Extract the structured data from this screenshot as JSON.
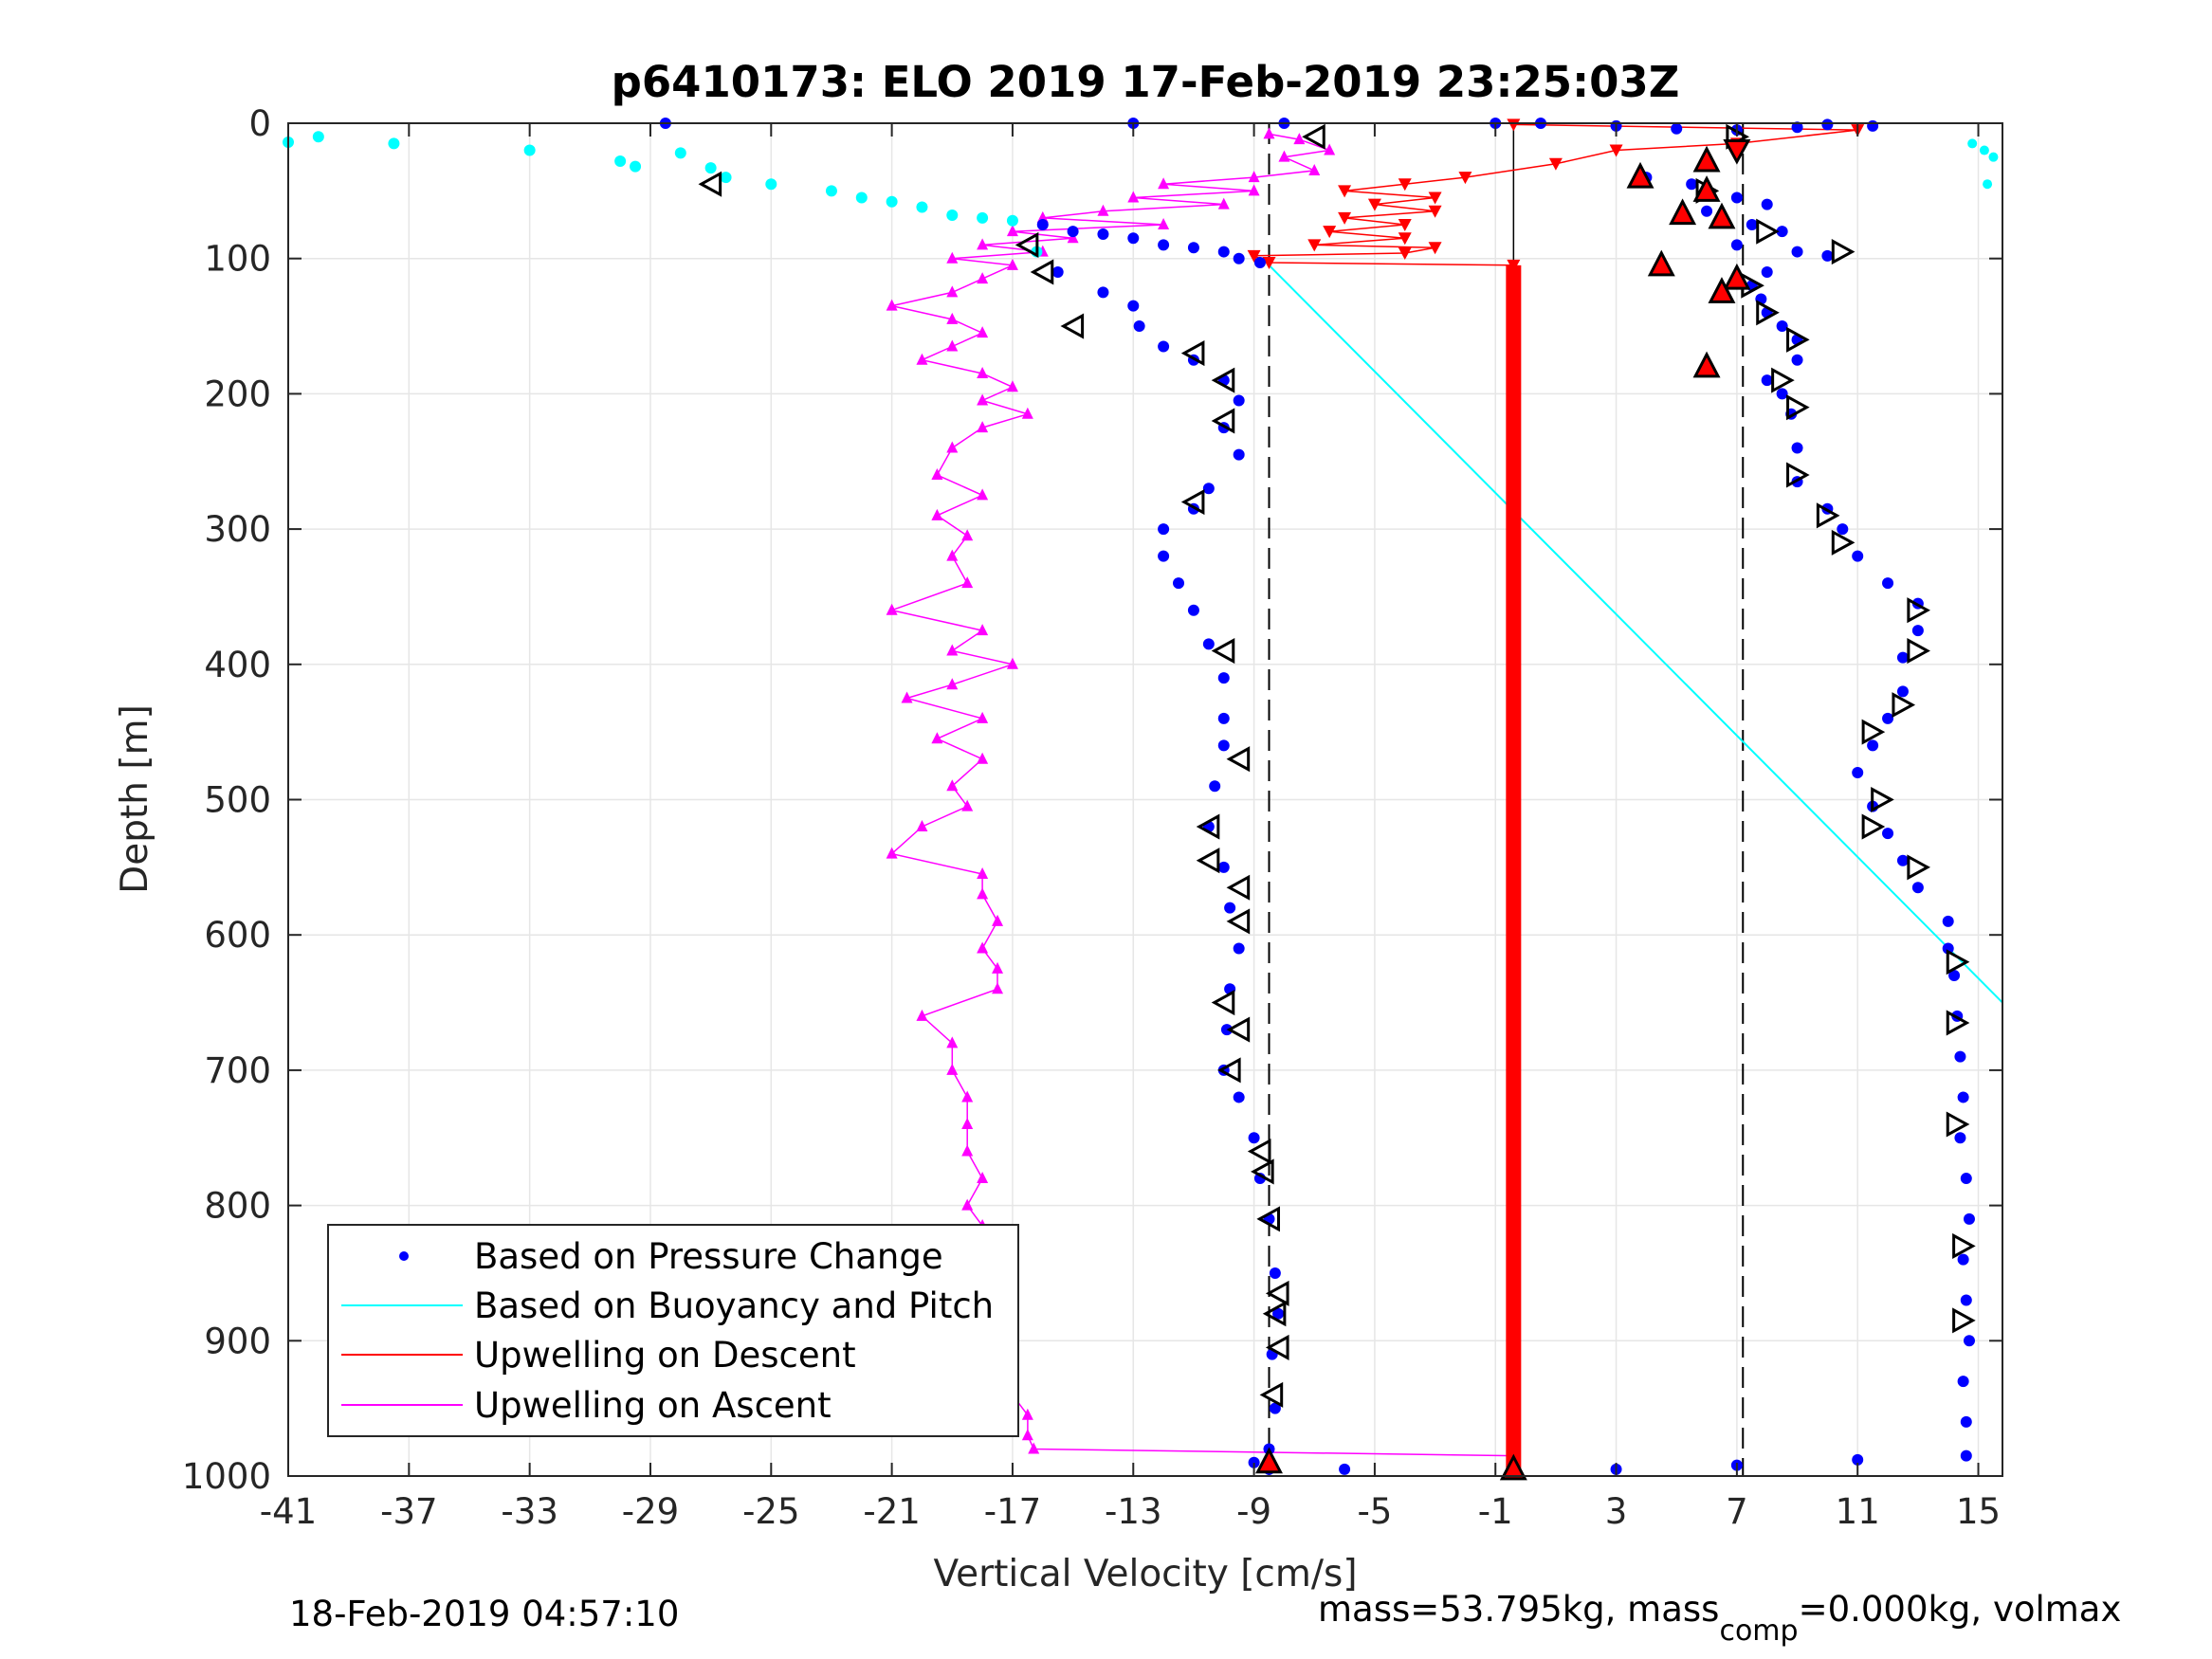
{
  "chart_data": {
    "type": "scatter",
    "title": "p6410173: ELO 2019 17-Feb-2019 23:25:03Z",
    "xlabel": "Vertical Velocity [cm/s]",
    "ylabel": "Depth [m]",
    "xlim": [
      -41,
      15.8
    ],
    "ylim": [
      0,
      1000
    ],
    "y_reversed": true,
    "grid": true,
    "xticks": [
      "-41",
      "-37",
      "-33",
      "-29",
      "-25",
      "-21",
      "-17",
      "-13",
      "-9",
      "-5",
      "-1",
      "3",
      "7",
      "11",
      "15"
    ],
    "yticks": [
      "0",
      "100",
      "200",
      "300",
      "400",
      "500",
      "600",
      "700",
      "800",
      "900",
      "1000"
    ],
    "legend_position": "bottom-left",
    "legend": [
      {
        "label": "Based on Pressure Change",
        "color": "#0000ff",
        "marker": "dot"
      },
      {
        "label": "Based on Buoyancy and Pitch",
        "color": "#00ffff",
        "marker": "line"
      },
      {
        "label": "Upwelling on Descent",
        "color": "#ff0000",
        "marker": "line"
      },
      {
        "label": "Upwelling on Ascent",
        "color": "#ff00ff",
        "marker": "line"
      }
    ],
    "reference_lines_x": [
      -8.5,
      7.2
    ],
    "buoyancy_pitch_line": {
      "from": [
        -8.5,
        105
      ],
      "to": [
        15.8,
        650
      ]
    },
    "descent_pressure": [
      [
        -41,
        14
      ],
      [
        -40,
        10
      ],
      [
        -37.5,
        15
      ],
      [
        -33,
        20
      ],
      [
        -30,
        28
      ],
      [
        -29.5,
        32
      ],
      [
        -28,
        22
      ],
      [
        -27,
        33
      ],
      [
        -26.5,
        40
      ],
      [
        -25,
        45
      ],
      [
        -23,
        50
      ],
      [
        -22,
        55
      ],
      [
        -21,
        58
      ],
      [
        -20,
        62
      ],
      [
        -19,
        68
      ],
      [
        -18,
        70
      ],
      [
        -17,
        72
      ],
      [
        -16,
        75
      ],
      [
        -15,
        80
      ],
      [
        -14,
        82
      ],
      [
        -13,
        85
      ],
      [
        -12,
        90
      ],
      [
        -11,
        92
      ],
      [
        -10,
        95
      ],
      [
        -9.5,
        100
      ],
      [
        -8.8,
        103
      ],
      [
        -16.2,
        95
      ],
      [
        -15.5,
        110
      ],
      [
        -14,
        125
      ],
      [
        -13,
        135
      ],
      [
        -12.8,
        150
      ],
      [
        -12,
        165
      ],
      [
        -11,
        175
      ],
      [
        -10,
        190
      ],
      [
        -9.5,
        205
      ],
      [
        -10,
        225
      ],
      [
        -9.5,
        245
      ],
      [
        -10.5,
        270
      ],
      [
        -11,
        285
      ],
      [
        -12,
        300
      ],
      [
        -12,
        320
      ],
      [
        -11.5,
        340
      ],
      [
        -11,
        360
      ],
      [
        -10.5,
        385
      ],
      [
        -10,
        410
      ],
      [
        -10,
        440
      ],
      [
        -10,
        460
      ],
      [
        -10.3,
        490
      ],
      [
        -10.5,
        520
      ],
      [
        -10,
        550
      ],
      [
        -9.8,
        580
      ],
      [
        -9.5,
        610
      ],
      [
        -9.8,
        640
      ],
      [
        -9.9,
        670
      ],
      [
        -10,
        700
      ],
      [
        -9.5,
        720
      ],
      [
        -9,
        750
      ],
      [
        -8.8,
        780
      ],
      [
        -8.5,
        810
      ],
      [
        -8.3,
        850
      ],
      [
        -8.2,
        880
      ],
      [
        -8.4,
        910
      ],
      [
        -8.3,
        950
      ],
      [
        -8.5,
        980
      ],
      [
        -8.5,
        995
      ]
    ],
    "ascent_pressure": [
      [
        -28.5,
        0
      ],
      [
        -13,
        0
      ],
      [
        -8,
        0
      ],
      [
        -1,
        0
      ],
      [
        0.5,
        0
      ],
      [
        3,
        2
      ],
      [
        5,
        4
      ],
      [
        7,
        5
      ],
      [
        9,
        3
      ],
      [
        10,
        1
      ],
      [
        11.5,
        2
      ],
      [
        4,
        40
      ],
      [
        5.5,
        45
      ],
      [
        6,
        50
      ],
      [
        7,
        55
      ],
      [
        8,
        60
      ],
      [
        6,
        65
      ],
      [
        7.5,
        75
      ],
      [
        8.5,
        80
      ],
      [
        7,
        90
      ],
      [
        9,
        95
      ],
      [
        10,
        98
      ],
      [
        8,
        110
      ],
      [
        7.5,
        120
      ],
      [
        7.8,
        130
      ],
      [
        8,
        140
      ],
      [
        8.5,
        150
      ],
      [
        9,
        160
      ],
      [
        9,
        175
      ],
      [
        8,
        190
      ],
      [
        8.5,
        200
      ],
      [
        8.8,
        215
      ],
      [
        9,
        240
      ],
      [
        9,
        265
      ],
      [
        10,
        285
      ],
      [
        10.5,
        300
      ],
      [
        11,
        320
      ],
      [
        12,
        340
      ],
      [
        13,
        355
      ],
      [
        13,
        375
      ],
      [
        12.5,
        395
      ],
      [
        12.5,
        420
      ],
      [
        12,
        440
      ],
      [
        11.5,
        460
      ],
      [
        11,
        480
      ],
      [
        11.5,
        505
      ],
      [
        12,
        525
      ],
      [
        12.5,
        545
      ],
      [
        13,
        565
      ],
      [
        14,
        590
      ],
      [
        14,
        610
      ],
      [
        14.2,
        630
      ],
      [
        14.3,
        660
      ],
      [
        14.4,
        690
      ],
      [
        14.5,
        720
      ],
      [
        14.4,
        750
      ],
      [
        14.6,
        780
      ],
      [
        14.7,
        810
      ],
      [
        14.5,
        840
      ],
      [
        14.6,
        870
      ],
      [
        14.7,
        900
      ],
      [
        14.5,
        930
      ],
      [
        14.6,
        960
      ],
      [
        14.6,
        985
      ],
      [
        -9,
        990
      ],
      [
        -6,
        995
      ],
      [
        3,
        995
      ],
      [
        7,
        992
      ],
      [
        11,
        988
      ]
    ],
    "buoyancy_markers": [
      {
        "depth": 15,
        "v": 14.8
      },
      {
        "depth": 20,
        "v": 15.2
      },
      {
        "depth": 25,
        "v": 15.5
      },
      {
        "depth": 45,
        "v": 15.3
      }
    ],
    "upwelling_descent": [
      [
        -0.4,
        1
      ],
      [
        11,
        5
      ],
      [
        7,
        15
      ],
      [
        3,
        20
      ],
      [
        1,
        30
      ],
      [
        -2,
        40
      ],
      [
        -4,
        45
      ],
      [
        -6,
        50
      ],
      [
        -3,
        55
      ],
      [
        -5,
        60
      ],
      [
        -3,
        65
      ],
      [
        -6,
        70
      ],
      [
        -4,
        75
      ],
      [
        -6.5,
        80
      ],
      [
        -4,
        85
      ],
      [
        -7,
        90
      ],
      [
        -3,
        92
      ],
      [
        -4,
        96
      ],
      [
        -9,
        98
      ],
      [
        -8.5,
        103
      ],
      [
        -0.4,
        105
      ]
    ],
    "upwelling_ascent": [
      [
        -8.5,
        8
      ],
      [
        -7.5,
        12
      ],
      [
        -6.5,
        20
      ],
      [
        -8,
        25
      ],
      [
        -7,
        35
      ],
      [
        -9,
        40
      ],
      [
        -12,
        45
      ],
      [
        -9,
        50
      ],
      [
        -13,
        55
      ],
      [
        -10,
        60
      ],
      [
        -14,
        65
      ],
      [
        -16,
        70
      ],
      [
        -12,
        75
      ],
      [
        -17,
        80
      ],
      [
        -15,
        85
      ],
      [
        -18,
        90
      ],
      [
        -16,
        95
      ],
      [
        -19,
        100
      ],
      [
        -17,
        105
      ],
      [
        -18,
        115
      ],
      [
        -19,
        125
      ],
      [
        -21,
        135
      ],
      [
        -19,
        145
      ],
      [
        -18,
        155
      ],
      [
        -19,
        165
      ],
      [
        -20,
        175
      ],
      [
        -18,
        185
      ],
      [
        -17,
        195
      ],
      [
        -18,
        205
      ],
      [
        -16.5,
        215
      ],
      [
        -18,
        225
      ],
      [
        -19,
        240
      ],
      [
        -19.5,
        260
      ],
      [
        -18,
        275
      ],
      [
        -19.5,
        290
      ],
      [
        -18.5,
        305
      ],
      [
        -19,
        320
      ],
      [
        -18.5,
        340
      ],
      [
        -21,
        360
      ],
      [
        -18,
        375
      ],
      [
        -19,
        390
      ],
      [
        -17,
        400
      ],
      [
        -19,
        415
      ],
      [
        -20.5,
        425
      ],
      [
        -18,
        440
      ],
      [
        -19.5,
        455
      ],
      [
        -18,
        470
      ],
      [
        -19,
        490
      ],
      [
        -18.5,
        505
      ],
      [
        -20,
        520
      ],
      [
        -21,
        540
      ],
      [
        -18,
        555
      ],
      [
        -18,
        570
      ],
      [
        -17.5,
        590
      ],
      [
        -18,
        610
      ],
      [
        -17.5,
        625
      ],
      [
        -17.5,
        640
      ],
      [
        -20,
        660
      ],
      [
        -19,
        680
      ],
      [
        -19,
        700
      ],
      [
        -18.5,
        720
      ],
      [
        -18.5,
        740
      ],
      [
        -18.5,
        760
      ],
      [
        -18,
        780
      ],
      [
        -18.5,
        800
      ],
      [
        -18,
        815
      ],
      [
        -20,
        830
      ],
      [
        -17.5,
        845
      ],
      [
        -17,
        860
      ],
      [
        -17.5,
        875
      ],
      [
        -17,
        890
      ],
      [
        -17.5,
        905
      ],
      [
        -17,
        920
      ],
      [
        -17,
        940
      ],
      [
        -16.5,
        955
      ],
      [
        -16.5,
        970
      ],
      [
        -16.3,
        980
      ],
      [
        -0.4,
        985
      ]
    ],
    "descent_arrows": [
      {
        "depth": 10,
        "v": -7
      },
      {
        "depth": 45,
        "v": -27
      },
      {
        "depth": 90,
        "v": -16.5
      },
      {
        "depth": 110,
        "v": -16
      },
      {
        "depth": 150,
        "v": -15
      },
      {
        "depth": 170,
        "v": -11
      },
      {
        "depth": 190,
        "v": -10
      },
      {
        "depth": 220,
        "v": -10
      },
      {
        "depth": 280,
        "v": -11
      },
      {
        "depth": 390,
        "v": -10
      },
      {
        "depth": 470,
        "v": -9.5
      },
      {
        "depth": 520,
        "v": -10.5
      },
      {
        "depth": 545,
        "v": -10.5
      },
      {
        "depth": 565,
        "v": -9.5
      },
      {
        "depth": 590,
        "v": -9.5
      },
      {
        "depth": 650,
        "v": -10
      },
      {
        "depth": 670,
        "v": -9.5
      },
      {
        "depth": 700,
        "v": -9.8
      },
      {
        "depth": 760,
        "v": -8.8
      },
      {
        "depth": 775,
        "v": -8.7
      },
      {
        "depth": 810,
        "v": -8.5
      },
      {
        "depth": 865,
        "v": -8.2
      },
      {
        "depth": 880,
        "v": -8.3
      },
      {
        "depth": 905,
        "v": -8.2
      },
      {
        "depth": 940,
        "v": -8.4
      }
    ],
    "ascent_arrows": [
      {
        "depth": 10,
        "v": 7
      },
      {
        "depth": 50,
        "v": 6
      },
      {
        "depth": 80,
        "v": 8
      },
      {
        "depth": 95,
        "v": 10.5
      },
      {
        "depth": 120,
        "v": 7.5
      },
      {
        "depth": 140,
        "v": 8
      },
      {
        "depth": 160,
        "v": 9
      },
      {
        "depth": 190,
        "v": 8.5
      },
      {
        "depth": 210,
        "v": 9
      },
      {
        "depth": 260,
        "v": 9
      },
      {
        "depth": 290,
        "v": 10
      },
      {
        "depth": 310,
        "v": 10.5
      },
      {
        "depth": 360,
        "v": 13
      },
      {
        "depth": 390,
        "v": 13
      },
      {
        "depth": 430,
        "v": 12.5
      },
      {
        "depth": 450,
        "v": 11.5
      },
      {
        "depth": 500,
        "v": 11.8
      },
      {
        "depth": 520,
        "v": 11.5
      },
      {
        "depth": 550,
        "v": 13
      },
      {
        "depth": 620,
        "v": 14.3
      },
      {
        "depth": 665,
        "v": 14.3
      },
      {
        "depth": 740,
        "v": 14.3
      },
      {
        "depth": 830,
        "v": 14.5
      },
      {
        "depth": 885,
        "v": 14.5
      }
    ],
    "red_triangles": [
      {
        "depth": 28,
        "v": 6
      },
      {
        "depth": 40,
        "v": 3.8
      },
      {
        "depth": 50,
        "v": 6
      },
      {
        "depth": 67,
        "v": 5.2
      },
      {
        "depth": 70,
        "v": 6.5
      },
      {
        "depth": 105,
        "v": 4.5
      },
      {
        "depth": 115,
        "v": 7
      },
      {
        "depth": 125,
        "v": 6.5
      },
      {
        "depth": 180,
        "v": 6
      },
      {
        "depth": 990,
        "v": -8.5
      },
      {
        "depth": 995,
        "v": -0.4
      }
    ],
    "red_down_triangles": [
      {
        "depth": 20,
        "v": 7
      }
    ],
    "thick_red_bar": {
      "v": -0.4,
      "from_depth": 105,
      "to_depth": 1000
    },
    "black_vline": {
      "v": -0.4,
      "from_depth": 0,
      "to_depth": 105
    }
  },
  "footer_left": "18-Feb-2019 04:57:10",
  "footer_right_prefix": "mass=53.795kg, mass",
  "footer_right_sub": "comp",
  "footer_right_suffix": "=0.000kg, volmax"
}
